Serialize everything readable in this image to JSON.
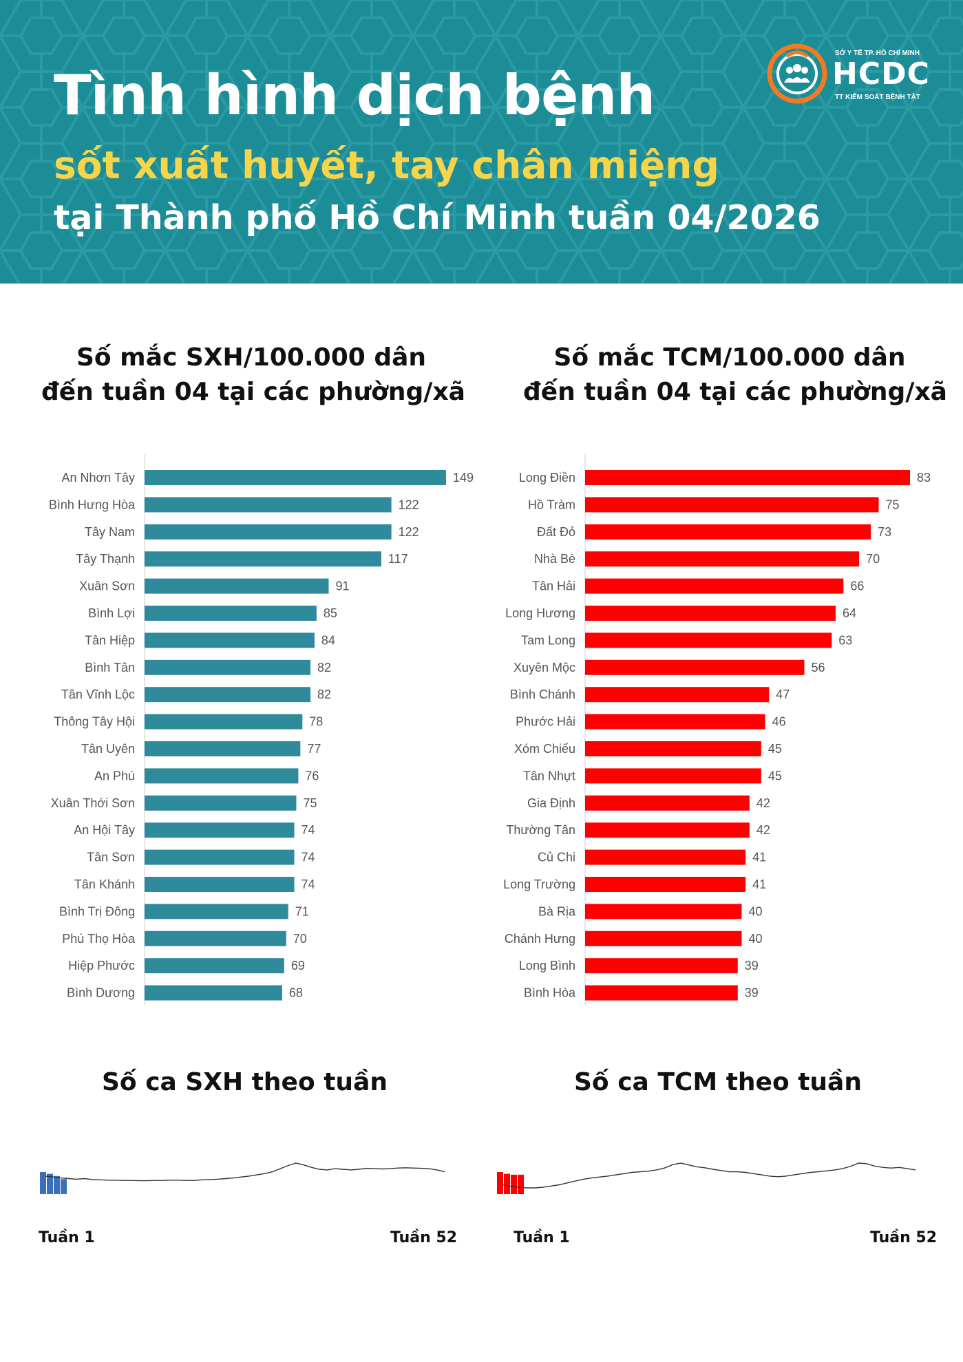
{
  "header": {
    "title": "Tình hình dịch bệnh",
    "subtitle1": "sốt xuất huyết, tay chân miệng",
    "subtitle2": "tại Thành phố Hồ Chí Minh tuần 04/2026",
    "logo_top": "SỞ Y TẾ TP. HỒ CHÍ MINH",
    "logo_main": "HCDC",
    "logo_bottom": "TT KIỂM SOÁT BỆNH TẬT"
  },
  "colors": {
    "header_bg": "#1c8c97",
    "subtitle_yellow": "#f6d54a",
    "sxh_bar": "#2f8a9b",
    "tcm_bar": "#ff0000",
    "sxh_week_bar": "#3b6fb6",
    "logo_orange": "#f07b22"
  },
  "sections": {
    "sxh_rate_title_1": "Số mắc SXH/100.000 dân",
    "sxh_rate_title_2": "đến tuần 04 tại các phường/xã",
    "tcm_rate_title_1": "Số mắc TCM/100.000 dân",
    "tcm_rate_title_2": "đến tuần 04 tại các phường/xã",
    "sxh_week_title": "Số ca SXH theo tuần",
    "tcm_week_title": "Số ca TCM theo tuần",
    "week_start": "Tuần 1",
    "week_end": "Tuần 52"
  },
  "chart_data": [
    {
      "type": "bar",
      "orientation": "horizontal",
      "title": "Số mắc SXH/100.000 dân đến tuần 04 tại các phường/xã",
      "categories": [
        "An Nhơn Tây",
        "Bình Hưng Hòa",
        "Tây Nam",
        "Tây Thạnh",
        "Xuân Sơn",
        "Bình Lợi",
        "Tân Hiệp",
        "Bình Tân",
        "Tân Vĩnh Lộc",
        "Thông Tây Hội",
        "Tân Uyên",
        "An Phú",
        "Xuân Thới Sơn",
        "An Hội Tây",
        "Tân Sơn",
        "Tân Khánh",
        "Bình Trị Đông",
        "Phú Thọ Hòa",
        "Hiệp Phước",
        "Bình Dương"
      ],
      "values": [
        149,
        122,
        122,
        117,
        91,
        85,
        84,
        82,
        82,
        78,
        77,
        76,
        75,
        74,
        74,
        74,
        71,
        70,
        69,
        68
      ],
      "xlim": [
        0,
        149
      ]
    },
    {
      "type": "bar",
      "orientation": "horizontal",
      "title": "Số mắc TCM/100.000 dân đến tuần 04 tại các phường/xã",
      "categories": [
        "Long Điền",
        "Hồ Tràm",
        "Đất Đỏ",
        "Nhà Bè",
        "Tân Hải",
        "Long Hương",
        "Tam Long",
        "Xuyên Mộc",
        "Bình Chánh",
        "Phước Hải",
        "Xóm Chiếu",
        "Tân Nhựt",
        "Gia Định",
        "Thường Tân",
        "Củ Chi",
        "Long Trường",
        "Bà Rịa",
        "Chánh Hưng",
        "Long Bình",
        "Bình Hòa"
      ],
      "values": [
        83,
        75,
        73,
        70,
        66,
        64,
        63,
        56,
        47,
        46,
        45,
        45,
        42,
        42,
        41,
        41,
        40,
        40,
        39,
        39
      ],
      "xlim": [
        0,
        83
      ]
    },
    {
      "type": "line",
      "title": "Số ca SXH theo tuần",
      "x_start_label": "Tuần 1",
      "x_end_label": "Tuần 52",
      "bars_current_year": [
        100,
        92,
        82,
        68
      ],
      "line_previous_year": [
        58,
        55,
        52,
        50,
        48,
        50,
        47,
        46,
        45,
        45,
        44,
        44,
        43,
        43,
        44,
        44,
        45,
        45,
        44,
        44,
        46,
        47,
        48,
        50,
        52,
        55,
        58,
        62,
        66,
        72,
        82,
        92,
        100,
        94,
        86,
        80,
        78,
        82,
        80,
        78,
        80,
        83,
        82,
        81,
        82,
        84,
        85,
        84,
        83,
        82,
        78,
        72
      ]
    },
    {
      "type": "line",
      "title": "Số ca TCM theo tuần",
      "x_start_label": "Tuần 1",
      "x_end_label": "Tuần 52",
      "bars_current_year": [
        100,
        92,
        88,
        88
      ],
      "line_previous_year": [
        30,
        25,
        22,
        20,
        20,
        22,
        26,
        30,
        36,
        42,
        48,
        52,
        55,
        58,
        62,
        66,
        70,
        72,
        74,
        78,
        84,
        95,
        100,
        94,
        88,
        85,
        80,
        76,
        72,
        72,
        70,
        66,
        62,
        58,
        56,
        58,
        62,
        66,
        70,
        72,
        75,
        78,
        82,
        90,
        100,
        98,
        90,
        86,
        84,
        86,
        82,
        78
      ]
    }
  ]
}
